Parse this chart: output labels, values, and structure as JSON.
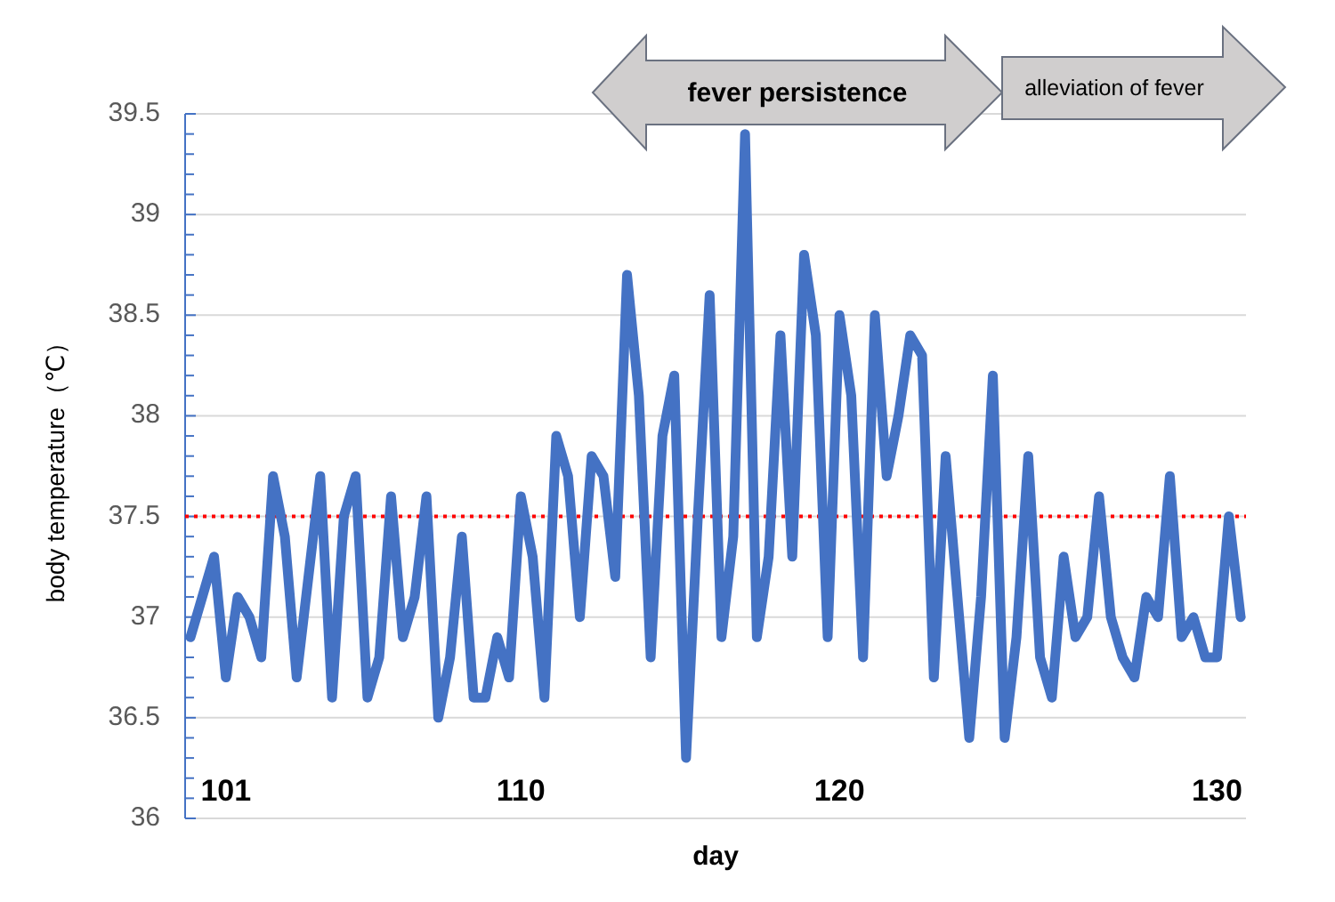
{
  "chart_data": {
    "type": "line",
    "xlabel": "day",
    "ylabel": "body temperature（℃）",
    "categories": [
      null,
      null,
      null,
      "101",
      null,
      null,
      null,
      null,
      null,
      null,
      null,
      null,
      null,
      null,
      null,
      null,
      null,
      null,
      null,
      null,
      null,
      null,
      null,
      null,
      null,
      null,
      null,
      null,
      "110",
      null,
      null,
      null,
      null,
      null,
      null,
      null,
      null,
      null,
      null,
      null,
      null,
      null,
      null,
      null,
      null,
      null,
      null,
      null,
      null,
      null,
      null,
      null,
      null,
      null,
      null,
      "120",
      null,
      null,
      null,
      null,
      null,
      null,
      null,
      null,
      null,
      null,
      null,
      null,
      null,
      null,
      null,
      null,
      null,
      null,
      null,
      null,
      null,
      null,
      null,
      null,
      null,
      null,
      null,
      null,
      null,
      null,
      null,
      "130",
      null,
      null
    ],
    "series": [
      {
        "color": "#4472c4",
        "values": [
          36.9,
          37.1,
          37.3,
          36.7,
          37.1,
          37.0,
          36.8,
          37.7,
          37.4,
          36.7,
          37.2,
          37.7,
          36.6,
          37.5,
          37.7,
          36.6,
          36.8,
          37.6,
          36.9,
          37.1,
          37.6,
          36.5,
          36.8,
          37.4,
          36.6,
          36.6,
          36.9,
          36.7,
          37.6,
          37.3,
          36.6,
          37.9,
          37.7,
          37.0,
          37.8,
          37.7,
          37.2,
          38.7,
          38.1,
          36.8,
          37.9,
          38.2,
          36.3,
          37.5,
          38.6,
          36.9,
          37.4,
          39.4,
          36.9,
          37.3,
          38.4,
          37.3,
          38.8,
          38.4,
          36.9,
          38.5,
          38.1,
          36.8,
          38.5,
          37.7,
          38.0,
          38.4,
          38.3,
          36.7,
          37.8,
          37.1,
          36.4,
          37.1,
          38.2,
          36.4,
          36.9,
          37.8,
          36.8,
          36.6,
          37.3,
          36.9,
          37.0,
          37.6,
          37.0,
          36.8,
          36.7,
          37.1,
          37.0,
          37.7,
          36.9,
          37.0,
          36.8,
          36.8,
          37.5,
          37.0
        ]
      }
    ],
    "ylim": [
      36,
      39.5
    ],
    "yticks": [
      36,
      {
        "value": 36.1,
        "label": null
      },
      {
        "value": 36.2,
        "label": null
      },
      {
        "value": 36.3,
        "label": null
      },
      {
        "value": 36.4,
        "label": null
      },
      36.5,
      {
        "value": 36.6,
        "label": null
      },
      {
        "value": 36.7,
        "label": null
      },
      {
        "value": 36.8,
        "label": null
      },
      {
        "value": 36.9,
        "label": null
      },
      37,
      {
        "value": 37.1,
        "label": null
      },
      {
        "value": 37.2,
        "label": null
      },
      {
        "value": 37.3,
        "label": null
      },
      {
        "value": 37.4,
        "label": null
      },
      37.5,
      {
        "value": 37.6,
        "label": null
      },
      {
        "value": 37.7,
        "label": null
      },
      {
        "value": 37.8,
        "label": null
      },
      {
        "value": 37.9,
        "label": null
      },
      38,
      {
        "value": 38.1,
        "label": null
      },
      {
        "value": 38.2,
        "label": null
      },
      {
        "value": 38.3,
        "label": null
      },
      {
        "value": 38.4,
        "label": null
      },
      38.5,
      {
        "value": 38.6,
        "label": null
      },
      {
        "value": 38.7,
        "label": null
      },
      {
        "value": 38.8,
        "label": null
      },
      {
        "value": 38.9,
        "label": null
      },
      39,
      {
        "value": 39.1,
        "label": null
      },
      {
        "value": 39.2,
        "label": null
      },
      {
        "value": 39.3,
        "label": null
      },
      {
        "value": 39.4,
        "label": null
      },
      39.5
    ],
    "grid": "y",
    "marker": "none",
    "line_style": "solid",
    "ref_lines": [
      {
        "axis": "y",
        "value": 37.5,
        "color": "#ff0000",
        "line_style": "dotted"
      }
    ],
    "annotations": [
      "fever persistence",
      "alleviation of fever"
    ]
  }
}
